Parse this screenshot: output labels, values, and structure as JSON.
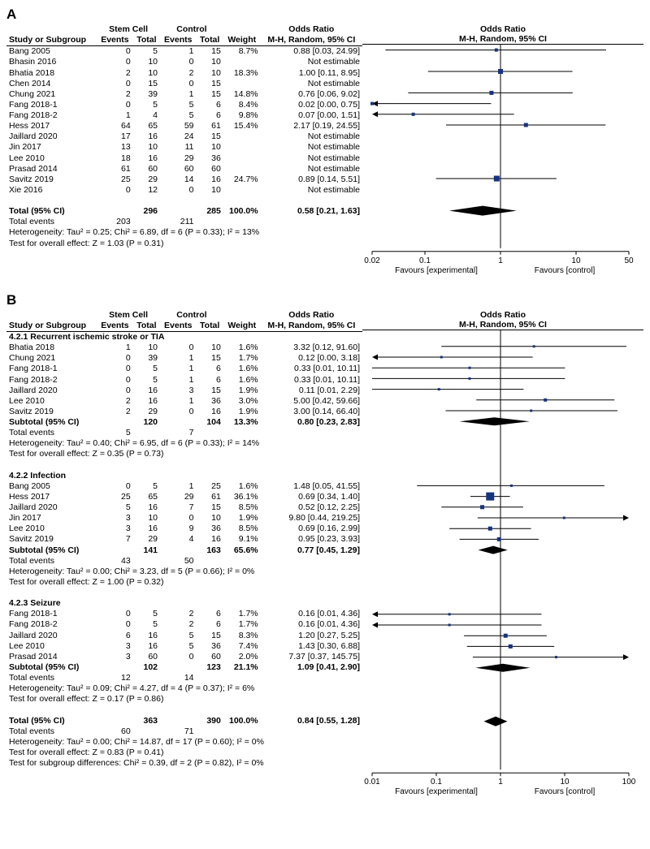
{
  "colors": {
    "text": "#000000",
    "marker_fill": "#16337f",
    "diamond_fill": "#000000",
    "axis": "#000000",
    "bg": "#ffffff"
  },
  "panelA": {
    "label": "A",
    "group_labels": {
      "exp": "Stem Cell",
      "ctrl": "Control"
    },
    "col_headers": {
      "study": "Study or Subgroup",
      "events": "Events",
      "total": "Total",
      "weight": "Weight",
      "or": "M-H, Random, 95% CI"
    },
    "or_title": "Odds Ratio",
    "plot_title": "Odds Ratio",
    "plot_sub": "M-H, Random, 95% CI",
    "rows": [
      {
        "study": "Bang 2005",
        "ee": "0",
        "et": "5",
        "ce": "1",
        "ct": "15",
        "w": "8.7%",
        "or": "0.88 [0.03, 24.99]",
        "pt": 0.88,
        "lo": 0.03,
        "hi": 24.99,
        "sz": 4
      },
      {
        "study": "Bhasin 2016",
        "ee": "0",
        "et": "10",
        "ce": "0",
        "ct": "10",
        "w": "",
        "or": "Not estimable"
      },
      {
        "study": "Bhatia 2018",
        "ee": "2",
        "et": "10",
        "ce": "2",
        "ct": "10",
        "w": "18.3%",
        "or": "1.00 [0.11, 8.95]",
        "pt": 1.0,
        "lo": 0.11,
        "hi": 8.95,
        "sz": 6
      },
      {
        "study": "Chen 2014",
        "ee": "0",
        "et": "15",
        "ce": "0",
        "ct": "15",
        "w": "",
        "or": "Not estimable"
      },
      {
        "study": "Chung 2021",
        "ee": "2",
        "et": "39",
        "ce": "1",
        "ct": "15",
        "w": "14.8%",
        "or": "0.76 [0.06, 9.02]",
        "pt": 0.76,
        "lo": 0.06,
        "hi": 9.02,
        "sz": 5
      },
      {
        "study": "Fang 2018-1",
        "ee": "0",
        "et": "5",
        "ce": "5",
        "ct": "6",
        "w": "8.4%",
        "or": "0.02 [0.00, 0.75]",
        "pt": 0.02,
        "lo": 0.001,
        "hi": 0.75,
        "sz": 4,
        "arrowL": true
      },
      {
        "study": "Fang 2018-2",
        "ee": "1",
        "et": "4",
        "ce": "5",
        "ct": "6",
        "w": "9.8%",
        "or": "0.07 [0.00, 1.51]",
        "pt": 0.07,
        "lo": 0.001,
        "hi": 1.51,
        "sz": 4,
        "arrowL": true
      },
      {
        "study": "Hess 2017",
        "ee": "64",
        "et": "65",
        "ce": "59",
        "ct": "61",
        "w": "15.4%",
        "or": "2.17 [0.19, 24.55]",
        "pt": 2.17,
        "lo": 0.19,
        "hi": 24.55,
        "sz": 5
      },
      {
        "study": "Jaillard 2020",
        "ee": "17",
        "et": "16",
        "ce": "24",
        "ct": "15",
        "w": "",
        "or": "Not estimable"
      },
      {
        "study": "Jin 2017",
        "ee": "13",
        "et": "10",
        "ce": "11",
        "ct": "10",
        "w": "",
        "or": "Not estimable"
      },
      {
        "study": "Lee 2010",
        "ee": "18",
        "et": "16",
        "ce": "29",
        "ct": "36",
        "w": "",
        "or": "Not estimable"
      },
      {
        "study": "Prasad 2014",
        "ee": "61",
        "et": "60",
        "ce": "60",
        "ct": "60",
        "w": "",
        "or": "Not estimable"
      },
      {
        "study": "Savitz 2019",
        "ee": "25",
        "et": "29",
        "ce": "14",
        "ct": "16",
        "w": "24.7%",
        "or": "0.89 [0.14, 5.51]",
        "pt": 0.89,
        "lo": 0.14,
        "hi": 5.51,
        "sz": 7
      },
      {
        "study": "Xie 2016",
        "ee": "0",
        "et": "12",
        "ce": "0",
        "ct": "10",
        "w": "",
        "or": "Not estimable"
      }
    ],
    "total": {
      "label": "Total (95% CI)",
      "et": "296",
      "ct": "285",
      "w": "100.0%",
      "or": "0.58 [0.21, 1.63]",
      "pt": 0.58,
      "lo": 0.21,
      "hi": 1.63
    },
    "total_events": {
      "label": "Total events",
      "ee": "203",
      "ce": "211"
    },
    "notes": [
      "Heterogeneity: Tau² = 0.25; Chi² = 6.89, df = 6 (P = 0.33); I² = 13%",
      "Test for overall effect: Z = 1.03 (P = 0.31)"
    ],
    "axis": {
      "ticks": [
        0.02,
        0.1,
        1,
        10,
        50
      ],
      "labels": [
        "0.02",
        "0.1",
        "1",
        "10",
        "50"
      ],
      "fav_left": "Favours [experimental]",
      "fav_right": "Favours [control]",
      "min": 0.02,
      "max": 50,
      "ref": 1
    }
  },
  "panelB": {
    "label": "B",
    "group_labels": {
      "exp": "Stem Cell",
      "ctrl": "Control"
    },
    "col_headers": {
      "study": "Study or Subgroup",
      "events": "Events",
      "total": "Total",
      "weight": "Weight",
      "or": "M-H, Random, 95% CI"
    },
    "or_title": "Odds Ratio",
    "plot_title": "Odds Ratio",
    "plot_sub": "M-H, Random, 95% CI",
    "subgroups": [
      {
        "title": "4.2.1 Recurrent ischemic stroke or TIA",
        "rows": [
          {
            "study": "Bhatia 2018",
            "ee": "1",
            "et": "10",
            "ce": "0",
            "ct": "10",
            "w": "1.6%",
            "or": "3.32 [0.12, 91.60]",
            "pt": 3.32,
            "lo": 0.12,
            "hi": 91.6,
            "sz": 3
          },
          {
            "study": "Chung 2021",
            "ee": "0",
            "et": "39",
            "ce": "1",
            "ct": "15",
            "w": "1.7%",
            "or": "0.12 [0.00, 3.18]",
            "pt": 0.12,
            "lo": 0.001,
            "hi": 3.18,
            "sz": 3,
            "arrowL": true
          },
          {
            "study": "Fang 2018-1",
            "ee": "0",
            "et": "5",
            "ce": "1",
            "ct": "6",
            "w": "1.6%",
            "or": "0.33 [0.01, 10.11]",
            "pt": 0.33,
            "lo": 0.01,
            "hi": 10.11,
            "sz": 3
          },
          {
            "study": "Fang 2018-2",
            "ee": "0",
            "et": "5",
            "ce": "1",
            "ct": "6",
            "w": "1.6%",
            "or": "0.33 [0.01, 10.11]",
            "pt": 0.33,
            "lo": 0.01,
            "hi": 10.11,
            "sz": 3
          },
          {
            "study": "Jaillard 2020",
            "ee": "0",
            "et": "16",
            "ce": "3",
            "ct": "15",
            "w": "1.9%",
            "or": "0.11 [0.01, 2.29]",
            "pt": 0.11,
            "lo": 0.01,
            "hi": 2.29,
            "sz": 3
          },
          {
            "study": "Lee 2010",
            "ee": "2",
            "et": "16",
            "ce": "1",
            "ct": "36",
            "w": "3.0%",
            "or": "5.00 [0.42, 59.66]",
            "pt": 5.0,
            "lo": 0.42,
            "hi": 59.66,
            "sz": 4
          },
          {
            "study": "Savitz 2019",
            "ee": "2",
            "et": "29",
            "ce": "0",
            "ct": "16",
            "w": "1.9%",
            "or": "3.00 [0.14, 66.40]",
            "pt": 3.0,
            "lo": 0.14,
            "hi": 66.4,
            "sz": 3
          }
        ],
        "subtotal": {
          "label": "Subtotal (95% CI)",
          "et": "120",
          "ct": "104",
          "w": "13.3%",
          "or": "0.80 [0.23, 2.83]",
          "pt": 0.8,
          "lo": 0.23,
          "hi": 2.83
        },
        "events": {
          "label": "Total events",
          "ee": "5",
          "ce": "7"
        },
        "notes": [
          "Heterogeneity: Tau² = 0.40; Chi² = 6.95, df = 6 (P = 0.33); I² = 14%",
          "Test for overall effect: Z = 0.35 (P = 0.73)"
        ]
      },
      {
        "title": "4.2.2 Infection",
        "rows": [
          {
            "study": "Bang 2005",
            "ee": "0",
            "et": "5",
            "ce": "1",
            "ct": "25",
            "w": "1.6%",
            "or": "1.48 [0.05, 41.55]",
            "pt": 1.48,
            "lo": 0.05,
            "hi": 41.55,
            "sz": 3
          },
          {
            "study": "Hess 2017",
            "ee": "25",
            "et": "65",
            "ce": "29",
            "ct": "61",
            "w": "36.1%",
            "or": "0.69 [0.34, 1.40]",
            "pt": 0.69,
            "lo": 0.34,
            "hi": 1.4,
            "sz": 10
          },
          {
            "study": "Jaillard 2020",
            "ee": "5",
            "et": "16",
            "ce": "7",
            "ct": "15",
            "w": "8.5%",
            "or": "0.52 [0.12, 2.25]",
            "pt": 0.52,
            "lo": 0.12,
            "hi": 2.25,
            "sz": 5
          },
          {
            "study": "Jin 2017",
            "ee": "3",
            "et": "10",
            "ce": "0",
            "ct": "10",
            "w": "1.9%",
            "or": "9.80 [0.44, 219.25]",
            "pt": 9.8,
            "lo": 0.44,
            "hi": 219.25,
            "sz": 3,
            "arrowR": true
          },
          {
            "study": "Lee 2010",
            "ee": "3",
            "et": "16",
            "ce": "9",
            "ct": "36",
            "w": "8.5%",
            "or": "0.69 [0.16, 2.99]",
            "pt": 0.69,
            "lo": 0.16,
            "hi": 2.99,
            "sz": 5
          },
          {
            "study": "Savitz 2019",
            "ee": "7",
            "et": "29",
            "ce": "4",
            "ct": "16",
            "w": "9.1%",
            "or": "0.95 [0.23, 3.93]",
            "pt": 0.95,
            "lo": 0.23,
            "hi": 3.93,
            "sz": 5
          }
        ],
        "subtotal": {
          "label": "Subtotal (95% CI)",
          "et": "141",
          "ct": "163",
          "w": "65.6%",
          "or": "0.77 [0.45, 1.29]",
          "pt": 0.77,
          "lo": 0.45,
          "hi": 1.29
        },
        "events": {
          "label": "Total events",
          "ee": "43",
          "ce": "50"
        },
        "notes": [
          "Heterogeneity: Tau² = 0.00; Chi² = 3.23, df = 5 (P = 0.66); I² = 0%",
          "Test for overall effect: Z = 1.00 (P = 0.32)"
        ]
      },
      {
        "title": "4.2.3 Seizure",
        "rows": [
          {
            "study": "Fang 2018-1",
            "ee": "0",
            "et": "5",
            "ce": "2",
            "ct": "6",
            "w": "1.7%",
            "or": "0.16 [0.01, 4.36]",
            "pt": 0.16,
            "lo": 0.01,
            "hi": 4.36,
            "sz": 3,
            "arrowL": true
          },
          {
            "study": "Fang 2018-2",
            "ee": "0",
            "et": "5",
            "ce": "2",
            "ct": "6",
            "w": "1.7%",
            "or": "0.16 [0.01, 4.36]",
            "pt": 0.16,
            "lo": 0.01,
            "hi": 4.36,
            "sz": 3,
            "arrowL": true
          },
          {
            "study": "Jaillard 2020",
            "ee": "6",
            "et": "16",
            "ce": "5",
            "ct": "15",
            "w": "8.3%",
            "or": "1.20 [0.27, 5.25]",
            "pt": 1.2,
            "lo": 0.27,
            "hi": 5.25,
            "sz": 5
          },
          {
            "study": "Lee 2010",
            "ee": "3",
            "et": "16",
            "ce": "5",
            "ct": "36",
            "w": "7.4%",
            "or": "1.43 [0.30, 6.88]",
            "pt": 1.43,
            "lo": 0.3,
            "hi": 6.88,
            "sz": 5
          },
          {
            "study": "Prasad 2014",
            "ee": "3",
            "et": "60",
            "ce": "0",
            "ct": "60",
            "w": "2.0%",
            "or": "7.37 [0.37, 145.75]",
            "pt": 7.37,
            "lo": 0.37,
            "hi": 145.75,
            "sz": 3,
            "arrowR": true
          }
        ],
        "subtotal": {
          "label": "Subtotal (95% CI)",
          "et": "102",
          "ct": "123",
          "w": "21.1%",
          "or": "1.09 [0.41, 2.90]",
          "pt": 1.09,
          "lo": 0.41,
          "hi": 2.9
        },
        "events": {
          "label": "Total events",
          "ee": "12",
          "ce": "14"
        },
        "notes": [
          "Heterogeneity: Tau² = 0.09; Chi² = 4.27, df = 4 (P = 0.37); I² = 6%",
          "Test for overall effect: Z = 0.17 (P = 0.86)"
        ]
      }
    ],
    "total": {
      "label": "Total (95% CI)",
      "et": "363",
      "ct": "390",
      "w": "100.0%",
      "or": "0.84 [0.55, 1.28]",
      "pt": 0.84,
      "lo": 0.55,
      "hi": 1.28
    },
    "total_events": {
      "label": "Total events",
      "ee": "60",
      "ce": "71"
    },
    "notes": [
      "Heterogeneity: Tau² = 0.00; Chi² = 14.87, df = 17 (P = 0.60); I² = 0%",
      "Test for overall effect: Z = 0.83 (P = 0.41)",
      "Test for subgroup differences: Chi² = 0.39, df = 2 (P = 0.82), I² = 0%"
    ],
    "axis": {
      "ticks": [
        0.01,
        0.1,
        1,
        10,
        100
      ],
      "labels": [
        "0.01",
        "0.1",
        "1",
        "10",
        "100"
      ],
      "fav_left": "Favours [experimental]",
      "fav_right": "Favours [control]",
      "min": 0.01,
      "max": 100,
      "ref": 1
    }
  }
}
